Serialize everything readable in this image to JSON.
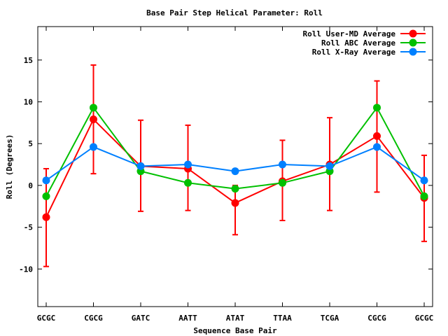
{
  "chart_data": {
    "type": "line",
    "title": "Base Pair Step Helical Parameter: Roll",
    "xlabel": "Sequence Base Pair",
    "ylabel": "Roll (Degrees)",
    "categories": [
      "GCGC",
      "CGCG",
      "GATC",
      "AATT",
      "ATAT",
      "TTAA",
      "TCGA",
      "CGCG",
      "GCGC"
    ],
    "ylim": [
      -14.5,
      19
    ],
    "yticks": [
      -10,
      -5,
      0,
      5,
      10,
      15
    ],
    "ytick_labels": [
      "-10",
      "-5",
      "0",
      "5",
      "10",
      "15"
    ],
    "legend_position": "top-right",
    "grid": false,
    "series": [
      {
        "name": "Roll User-MD Average",
        "color": "#ff0000",
        "values": [
          -3.8,
          7.9,
          2.3,
          2.0,
          -2.1,
          0.5,
          2.5,
          5.9,
          -1.5
        ],
        "error_low": [
          -9.7,
          1.4,
          -3.1,
          -3.0,
          -5.9,
          -4.2,
          -3.0,
          -0.8,
          -6.7
        ],
        "error_high": [
          2.0,
          14.4,
          7.8,
          7.2,
          0.0,
          5.4,
          8.1,
          12.5,
          3.6
        ]
      },
      {
        "name": "Roll ABC Average",
        "color": "#00c000",
        "values": [
          -1.3,
          9.3,
          1.7,
          0.3,
          -0.4,
          0.3,
          1.7,
          9.3,
          -1.3
        ]
      },
      {
        "name": "Roll X-Ray Average",
        "color": "#0080ff",
        "values": [
          0.6,
          4.6,
          2.3,
          2.5,
          1.7,
          2.5,
          2.3,
          4.6,
          0.6
        ]
      }
    ]
  }
}
